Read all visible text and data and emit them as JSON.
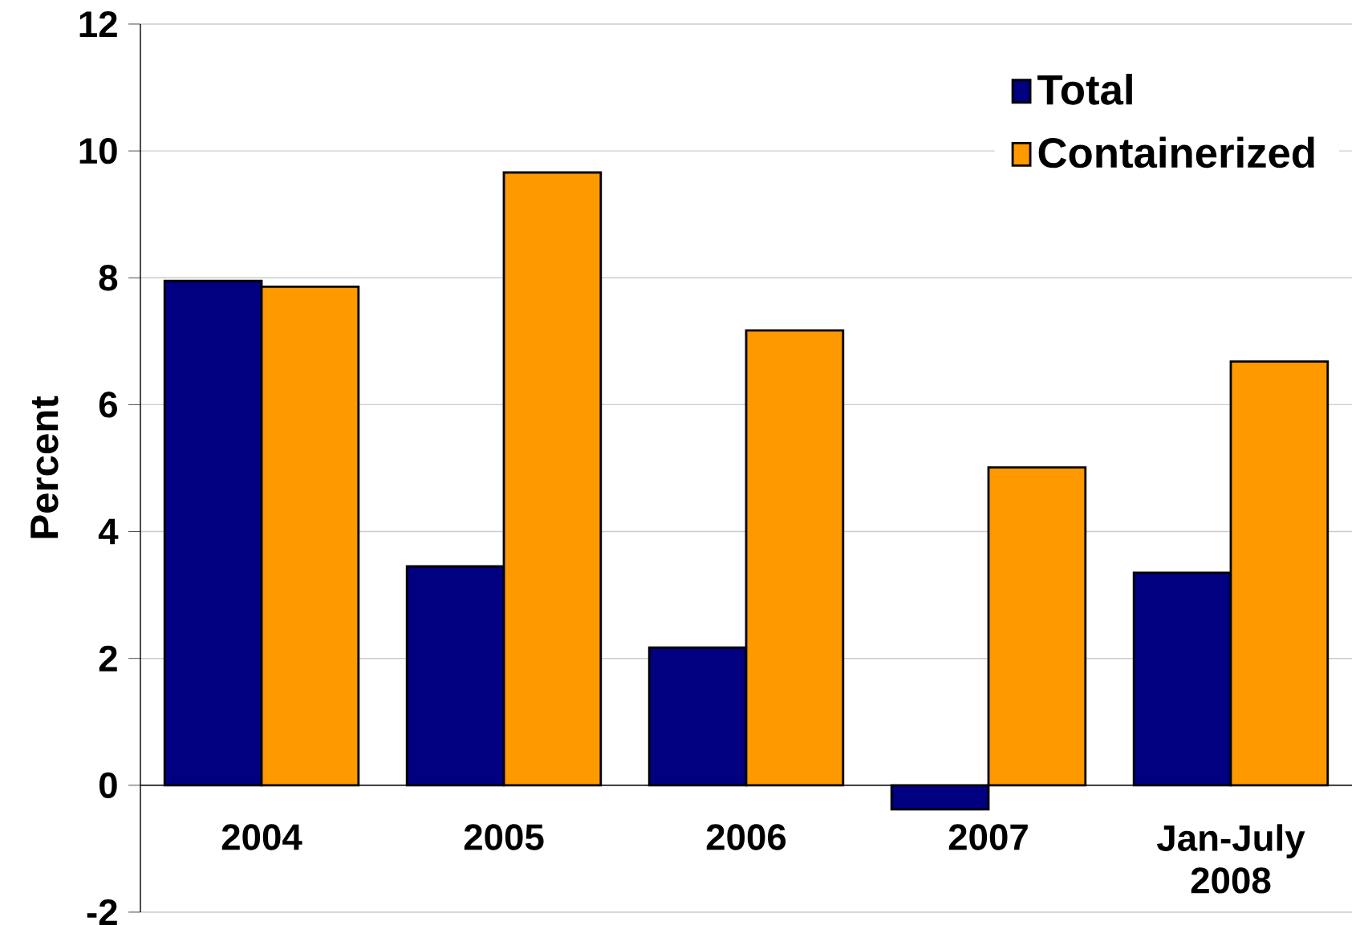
{
  "chart_data": {
    "type": "bar",
    "ylabel": "Percent",
    "categories": [
      "2004",
      "2005",
      "2006",
      "2007",
      "Jan-July 2008"
    ],
    "series": [
      {
        "name": "Total",
        "color": "#000080",
        "values": [
          7.95,
          3.45,
          2.17,
          -0.38,
          3.35
        ]
      },
      {
        "name": "Containerized",
        "color": "#ff9900",
        "values": [
          7.86,
          9.66,
          7.17,
          5.01,
          6.68
        ]
      }
    ],
    "ylim": [
      -2,
      12
    ],
    "yticks": [
      -2,
      0,
      2,
      4,
      6,
      8,
      10,
      12
    ],
    "grid": "y",
    "legend": "top right"
  }
}
